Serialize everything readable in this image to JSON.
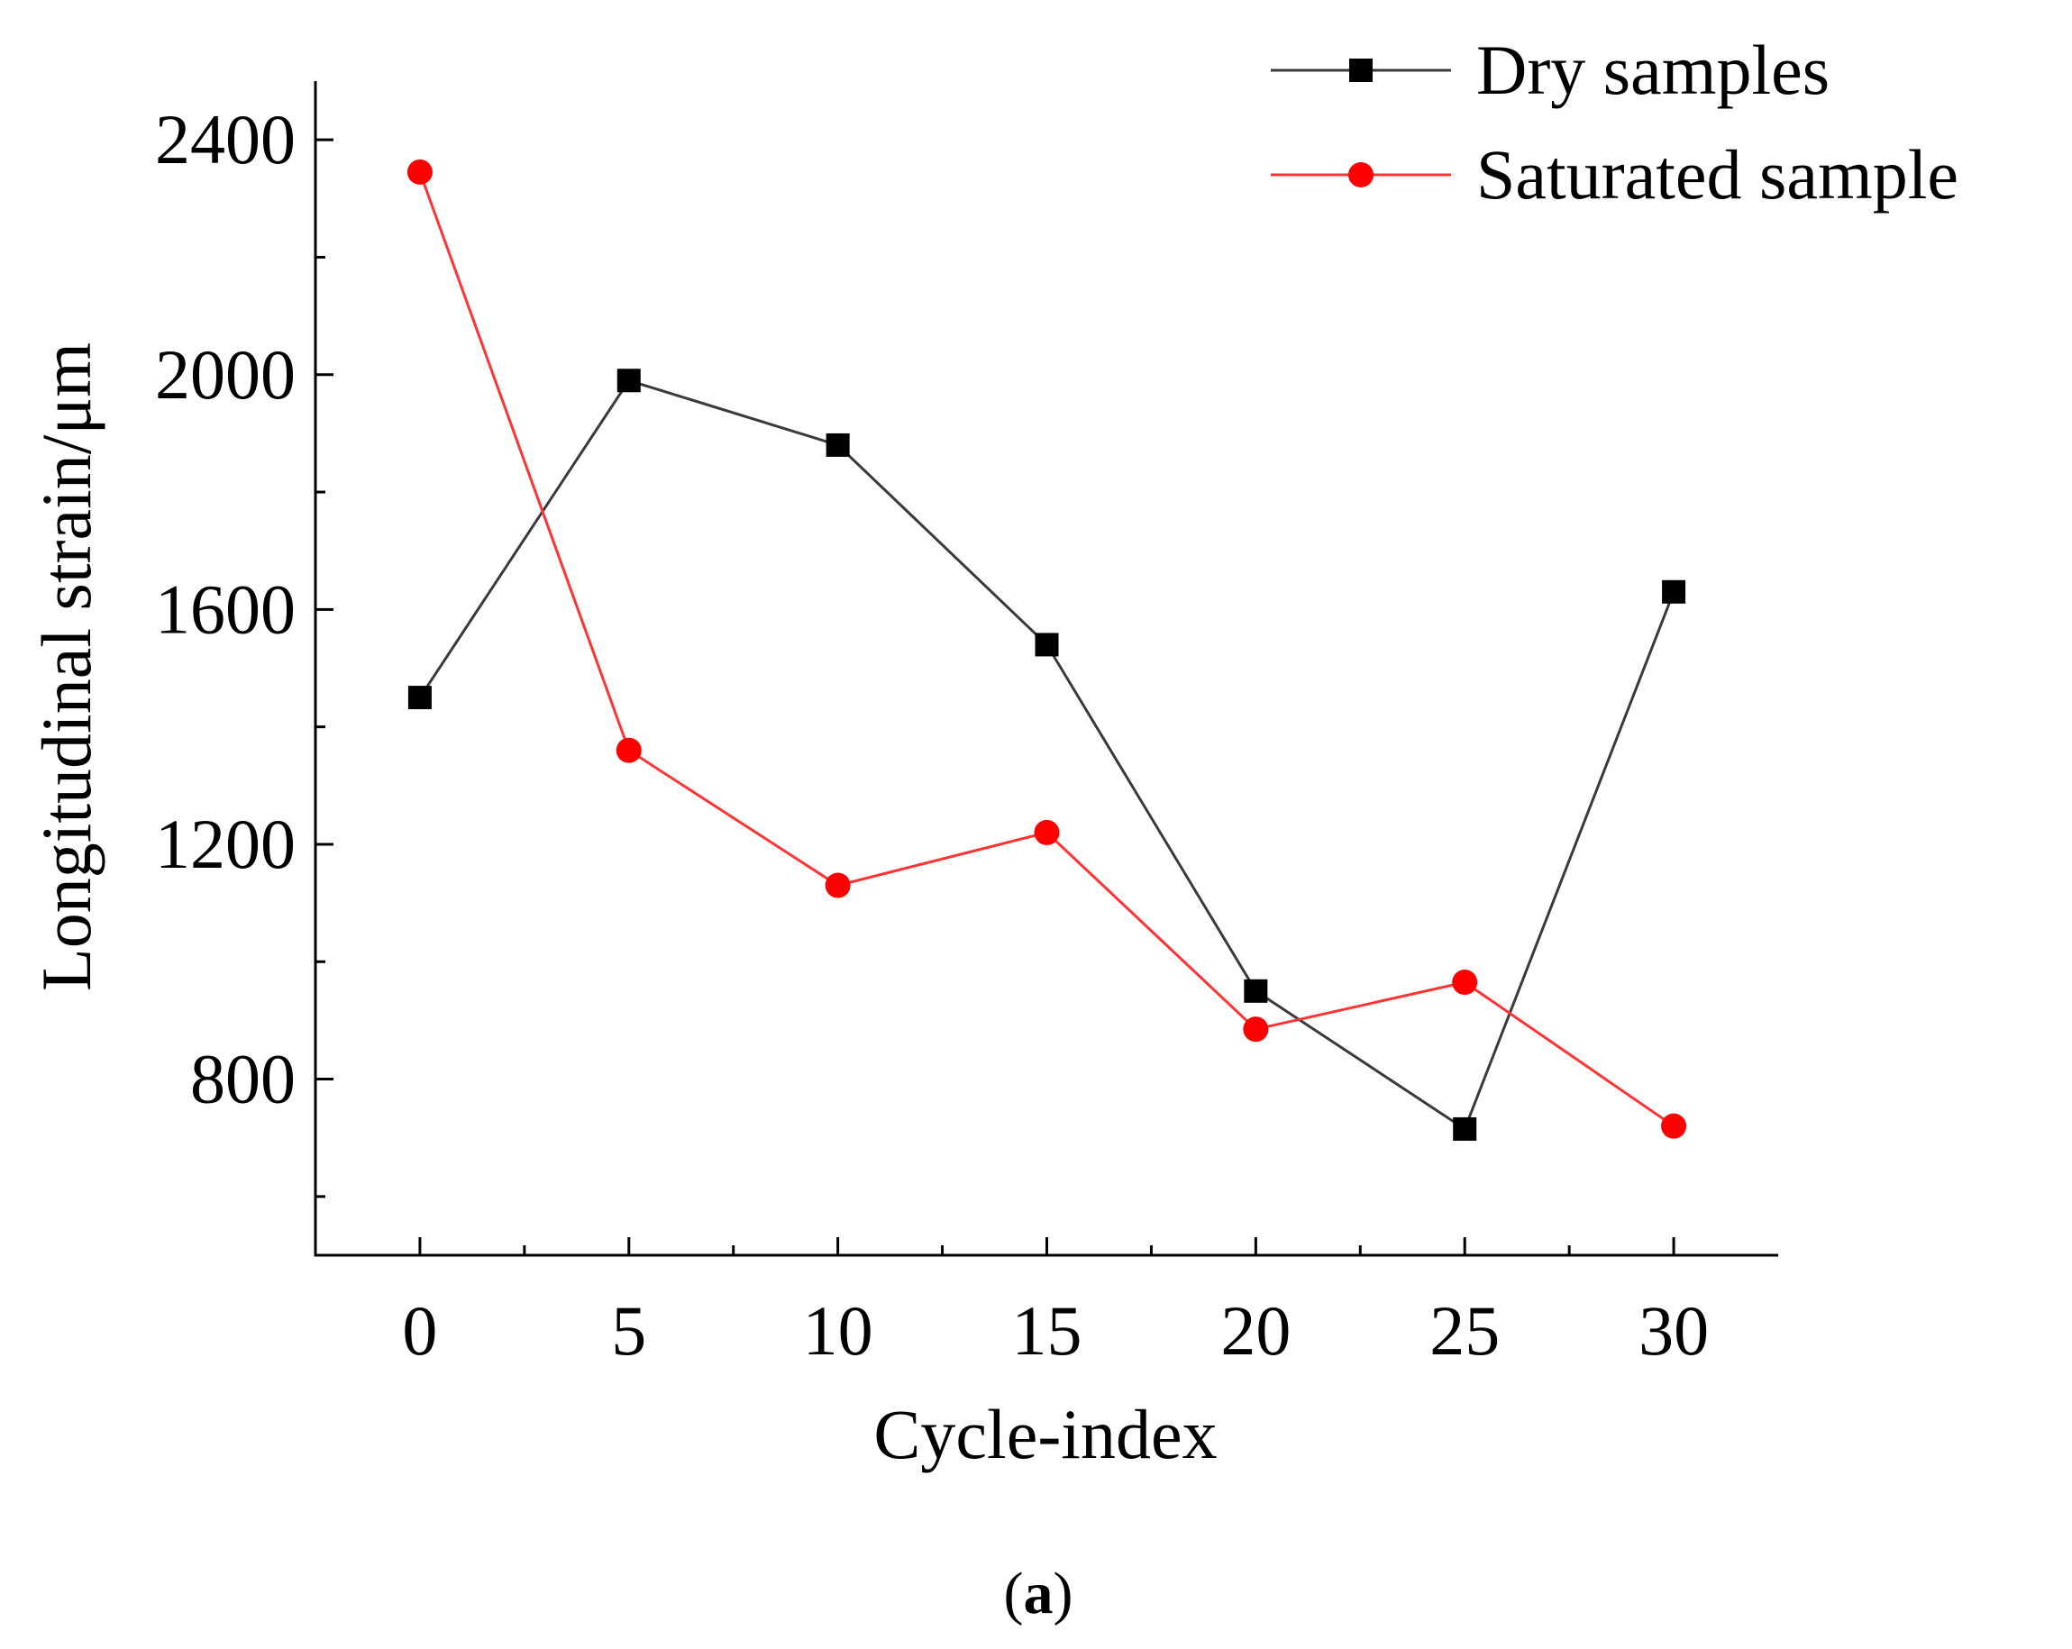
{
  "chart_data": {
    "type": "line",
    "xlabel": "Cycle-index",
    "ylabel": "Longitudinal strain/μm",
    "x": [
      0,
      5,
      10,
      15,
      20,
      25,
      30
    ],
    "x_ticks": [
      "0",
      "5",
      "10",
      "15",
      "20",
      "25",
      "30"
    ],
    "y_ticks": [
      "800",
      "1200",
      "1600",
      "2000",
      "2400"
    ],
    "xlim": [
      -2.5,
      32.5
    ],
    "ylim": [
      500,
      2500
    ],
    "grid": false,
    "legend": "top-right",
    "series": [
      {
        "name": "Dry samples",
        "color": "#3a3a3a",
        "marker_color": "#000000",
        "marker": "square",
        "values": [
          1450,
          1990,
          1880,
          1540,
          950,
          715,
          1630
        ]
      },
      {
        "name": "Saturated sample",
        "color": "#ff3333",
        "marker_color": "#ff0000",
        "marker": "circle",
        "values": [
          2345,
          1360,
          1130,
          1220,
          885,
          965,
          720
        ]
      }
    ]
  },
  "caption": {
    "open": "(",
    "letter": "a",
    "close": ")"
  }
}
